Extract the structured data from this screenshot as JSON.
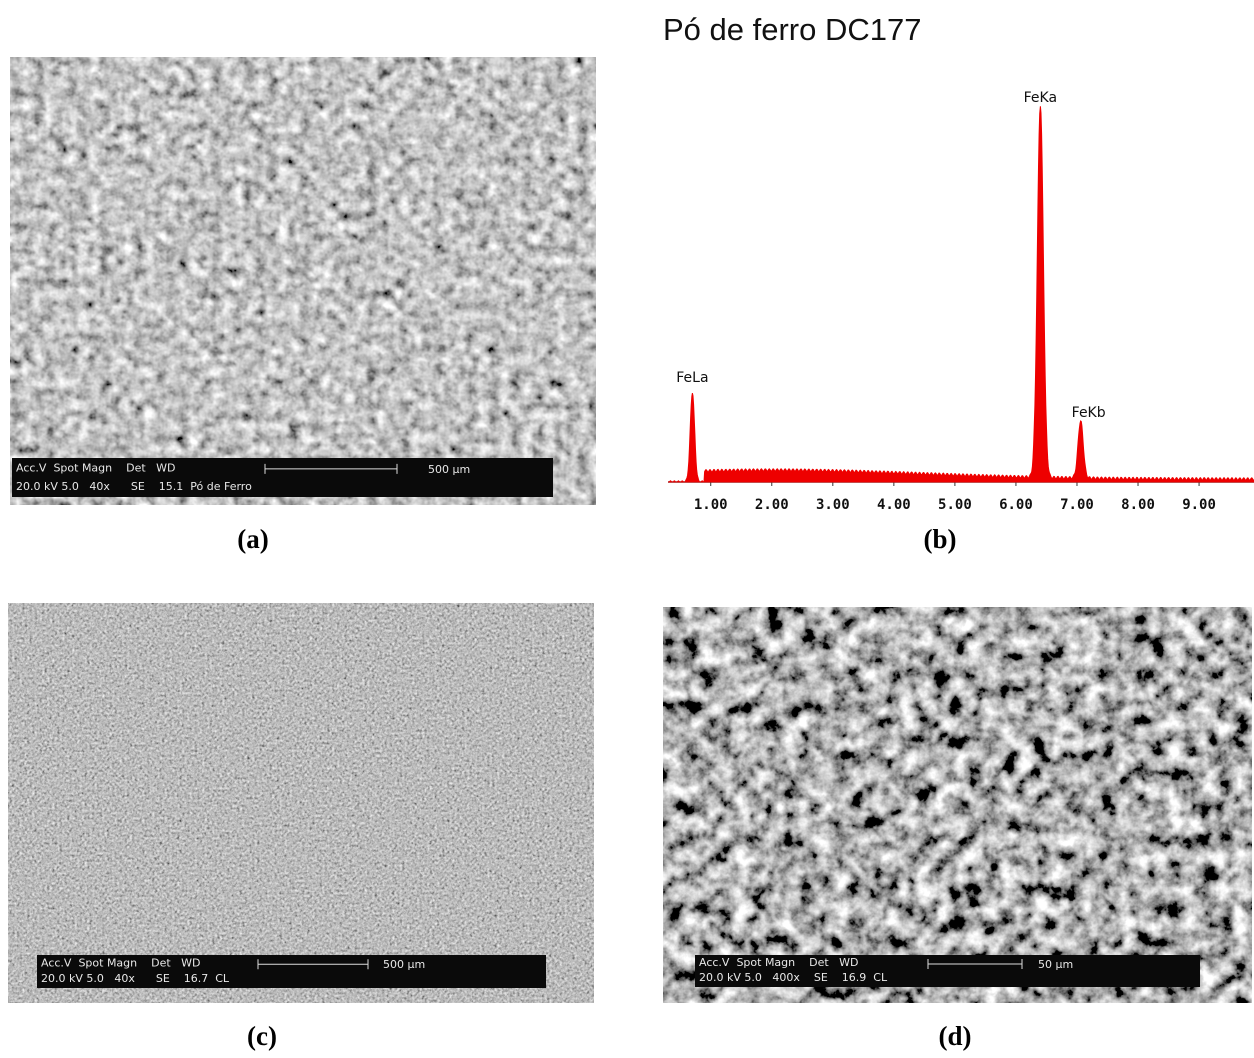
{
  "panels": [
    {
      "label": "(a)",
      "info_header": "Acc.V  Spot Magn    Det   WD",
      "info_values": "20.0 kV 5.0   40x      SE    15.1  Pó de Ferro",
      "scale": "500 µm"
    },
    {
      "label": "(b)"
    },
    {
      "label": "(c)",
      "info_header": "Acc.V  Spot Magn    Det   WD",
      "info_values": "20.0 kV 5.0   40x      SE    16.7  CL",
      "scale": "500 µm"
    },
    {
      "label": "(d)",
      "info_header": "Acc.V  Spot Magn    Det   WD",
      "info_values": "20.0 kV 5.0   400x    SE    16.9  CL",
      "scale": "50 µm"
    }
  ],
  "spectrum": {
    "title": "Pó de ferro DC177",
    "xlim": [
      0.3,
      9.9
    ],
    "xticks": [
      {
        "value": 1,
        "label": "1.00"
      },
      {
        "value": 2,
        "label": "2.00"
      },
      {
        "value": 3,
        "label": "3.00"
      },
      {
        "value": 4,
        "label": "4.00"
      },
      {
        "value": 5,
        "label": "5.00"
      },
      {
        "value": 6,
        "label": "6.00"
      },
      {
        "value": 7,
        "label": "7.00"
      },
      {
        "value": 8,
        "label": "8.00"
      },
      {
        "value": 9,
        "label": "9.00"
      }
    ],
    "peaks": [
      {
        "label": "FeLa",
        "energy": 0.7
      },
      {
        "label": "FeKa",
        "energy": 6.4
      },
      {
        "label": "FeKb",
        "energy": 7.06
      }
    ]
  }
}
